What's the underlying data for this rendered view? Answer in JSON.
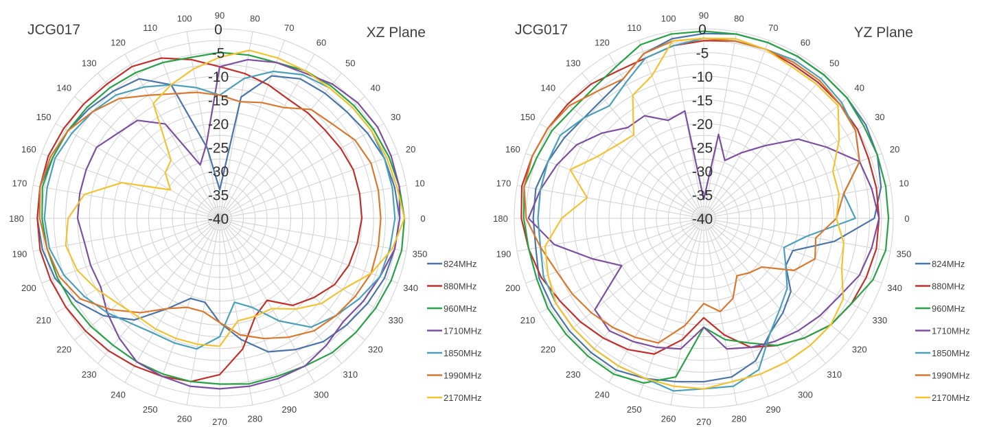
{
  "chart_data": [
    {
      "type": "radar",
      "name": "xz",
      "title_left": "JCG017",
      "title_right": "XZ Plane",
      "angular_ticks": [
        "0",
        "10",
        "20",
        "30",
        "40",
        "50",
        "60",
        "70",
        "80",
        "90",
        "100",
        "110",
        "120",
        "130",
        "140",
        "150",
        "160",
        "170",
        "180",
        "190",
        "200",
        "210",
        "220",
        "230",
        "240",
        "250",
        "260",
        "270",
        "280",
        "290",
        "300",
        "310",
        "320",
        "330",
        "340",
        "350"
      ],
      "radial_ticks": [
        "0",
        "-5",
        "-10",
        "-15",
        "-20",
        "-25",
        "-30",
        "-35",
        "-40"
      ],
      "rlim": [
        -40,
        0
      ],
      "grid": true,
      "legend_position": "right",
      "series": [
        {
          "name": "824MHz",
          "color": "#4a74a8",
          "values": [
            -2,
            -2.5,
            -3,
            -4,
            -5,
            -5.5,
            -6,
            -8,
            -14,
            -34,
            -25,
            -10,
            -6,
            -5,
            -4,
            -3,
            -2.5,
            -1.5,
            -1.5,
            -2,
            -3,
            -5,
            -8,
            -12,
            -18,
            -22,
            -22,
            -18,
            -14,
            -10,
            -8,
            -6,
            -5,
            -4,
            -3,
            -2.5
          ]
        },
        {
          "name": "880MHz",
          "color": "#c0302b",
          "values": [
            -10,
            -10,
            -10,
            -10.5,
            -11,
            -11,
            -11,
            -10,
            -9,
            -8,
            -6,
            -4,
            -3,
            -3,
            -2.5,
            -2,
            -1.5,
            -1.5,
            -1.5,
            -1.5,
            -2,
            -2.5,
            -3,
            -3.5,
            -4,
            -4.5,
            -5,
            -7,
            -12,
            -18,
            -20,
            -16,
            -14,
            -12,
            -11,
            -10.5
          ]
        },
        {
          "name": "960MHz",
          "color": "#27a046",
          "values": [
            -1,
            -1.5,
            -2,
            -2.5,
            -3,
            -3.5,
            -4,
            -5,
            -5,
            -5,
            -5.5,
            -5,
            -4.5,
            -4,
            -3.5,
            -3,
            -2.5,
            -2,
            -2.5,
            -3,
            -3.5,
            -4,
            -4.5,
            -5,
            -5,
            -5,
            -5,
            -5,
            -4.5,
            -4.5,
            -4,
            -3,
            -2.5,
            -2,
            -1.5,
            -1
          ]
        },
        {
          "name": "1710MHz",
          "color": "#7d4ea0",
          "values": [
            -2,
            -1.5,
            -1.5,
            -1.5,
            -2,
            -3,
            -4.5,
            -5,
            -6,
            -8,
            -24,
            -28,
            -17,
            -13,
            -12,
            -10,
            -10,
            -10,
            -10,
            -11,
            -11,
            -11,
            -9,
            -7,
            -5,
            -4.5,
            -4,
            -4,
            -4,
            -4,
            -4,
            -5,
            -6,
            -5,
            -4,
            -2.5
          ]
        },
        {
          "name": "1850MHz",
          "color": "#4aa0b8",
          "values": [
            -3,
            -3,
            -3,
            -3,
            -3.5,
            -4,
            -5,
            -7,
            -10,
            -14,
            -12,
            -10,
            -8,
            -6,
            -5,
            -4,
            -3,
            -3,
            -3,
            -3.5,
            -5,
            -7,
            -9,
            -11,
            -12,
            -12,
            -12,
            -15,
            -22,
            -20,
            -15,
            -10,
            -8,
            -6,
            -4,
            -3.5
          ]
        },
        {
          "name": "1990MHz",
          "color": "#d8772e",
          "values": [
            -6,
            -6,
            -6,
            -7,
            -9,
            -10,
            -13,
            -14,
            -15,
            -14,
            -13,
            -12,
            -10,
            -7,
            -5,
            -3,
            -2,
            -1.5,
            -2,
            -3,
            -4,
            -6,
            -10,
            -14,
            -18,
            -20,
            -20,
            -18,
            -15,
            -13,
            -11,
            -9,
            -8,
            -7,
            -6,
            -6
          ]
        },
        {
          "name": "2170MHz",
          "color": "#f2c230",
          "values": [
            -1,
            -2,
            -2.5,
            -3,
            -3.5,
            -4,
            -4,
            -4,
            -4,
            -6,
            -8,
            -10,
            -12,
            -24,
            -25,
            -28,
            -18,
            -11,
            -8,
            -7,
            -8,
            -10,
            -12,
            -13,
            -13,
            -13,
            -13,
            -13,
            -18,
            -18,
            -18,
            -15,
            -12,
            -10,
            -6,
            -3
          ]
        }
      ]
    },
    {
      "type": "radar",
      "name": "yz",
      "title_left": "JCG017",
      "title_right": "YZ Plane",
      "angular_ticks": [
        "0",
        "10",
        "20",
        "30",
        "40",
        "50",
        "60",
        "70",
        "80",
        "90",
        "100",
        "110",
        "120",
        "130",
        "140",
        "150",
        "160",
        "170",
        "180",
        "190",
        "200",
        "210",
        "220",
        "230",
        "240",
        "250",
        "260",
        "270",
        "280",
        "290",
        "300",
        "310",
        "320",
        "330",
        "340",
        "350"
      ],
      "radial_ticks": [
        "0",
        "-5",
        "-10",
        "-15",
        "-20",
        "-25",
        "-30",
        "-35",
        "-40"
      ],
      "rlim": [
        -40,
        0
      ],
      "grid": true,
      "legend_position": "right",
      "series": [
        {
          "name": "824MHz",
          "color": "#4a74a8",
          "values": [
            -4,
            -2,
            -1,
            -0.5,
            -0.5,
            -0.5,
            -0.5,
            -0.5,
            -0.5,
            -1,
            -1.5,
            -3,
            -6,
            -7,
            -7,
            -6,
            -5,
            -4,
            -4,
            -4,
            -3,
            -3,
            -3,
            -3,
            -3,
            -4,
            -5,
            -5.5,
            -6,
            -8,
            -12,
            -14,
            -16,
            -20,
            -20,
            -12
          ]
        },
        {
          "name": "880MHz",
          "color": "#c0302b",
          "values": [
            -3,
            -3,
            -3,
            -2.5,
            -2.5,
            -2.5,
            -2.5,
            -2,
            -2,
            -2.5,
            -3,
            -4,
            -4,
            -3,
            -2.5,
            -2,
            -1.5,
            -1,
            -1.5,
            -2.5,
            -3.5,
            -5,
            -6,
            -7,
            -8,
            -9.5,
            -14,
            -19,
            -15,
            -11,
            -9,
            -7,
            -5,
            -4,
            -3.5,
            -3
          ]
        },
        {
          "name": "960MHz",
          "color": "#27a046",
          "values": [
            -1,
            -1,
            -1,
            -1,
            -0.5,
            -0.5,
            -0.5,
            -0.5,
            -0.5,
            -0.5,
            -0.5,
            -1,
            -3,
            -4,
            -4,
            -3,
            -2.5,
            -1.5,
            -2,
            -2.5,
            -2.5,
            -2,
            -2,
            -2,
            -2,
            -3,
            -6,
            -17,
            -14,
            -12,
            -9,
            -7,
            -5,
            -4,
            -2,
            -1
          ]
        },
        {
          "name": "1710MHz",
          "color": "#7d4ea0",
          "values": [
            -3,
            -4,
            -5,
            -10,
            -14,
            -20,
            -24,
            -27,
            -22,
            -36,
            -17,
            -18,
            -15,
            -15,
            -12,
            -9,
            -7,
            -5,
            -3,
            -8,
            -15,
            -20,
            -10,
            -9,
            -10,
            -11,
            -12,
            -17,
            -12,
            -11,
            -10,
            -9,
            -8,
            -7,
            -5,
            -4
          ]
        },
        {
          "name": "1850MHz",
          "color": "#4aa0b8",
          "values": [
            -8,
            -10,
            -5,
            -3,
            -2,
            -1.5,
            -1.5,
            -2,
            -2,
            -2,
            -3,
            -4,
            -7,
            -9,
            -7,
            -5,
            -5,
            -5,
            -5,
            -5,
            -4,
            -4,
            -4,
            -4,
            -4,
            -4,
            -3,
            -4,
            -4,
            -6,
            -12,
            -15,
            -17,
            -20,
            -22,
            -18
          ]
        },
        {
          "name": "1990MHz",
          "color": "#d8772e",
          "values": [
            -12,
            -10,
            -5,
            -3,
            -2.5,
            -2,
            -2,
            -2,
            -2,
            -2,
            -2,
            -3,
            -6,
            -5,
            -3,
            -2,
            -1.5,
            -1.5,
            -2.5,
            -5,
            -7,
            -8,
            -9,
            -10,
            -11,
            -12,
            -17,
            -22,
            -20,
            -22,
            -26,
            -25,
            -24,
            -18,
            -15,
            -16
          ]
        },
        {
          "name": "2170MHz",
          "color": "#f2c230",
          "values": [
            -12,
            -11,
            -11,
            -7,
            -3,
            -3,
            -3,
            -2,
            -1.5,
            -2,
            -2,
            -8,
            -10,
            -17,
            -16,
            -14,
            -10,
            -15,
            -10,
            -6,
            -5,
            -4,
            -4,
            -4,
            -4,
            -4,
            -4,
            -4,
            -5,
            -5,
            -5,
            -5,
            -5,
            -6,
            -9,
            -10
          ]
        }
      ]
    }
  ]
}
